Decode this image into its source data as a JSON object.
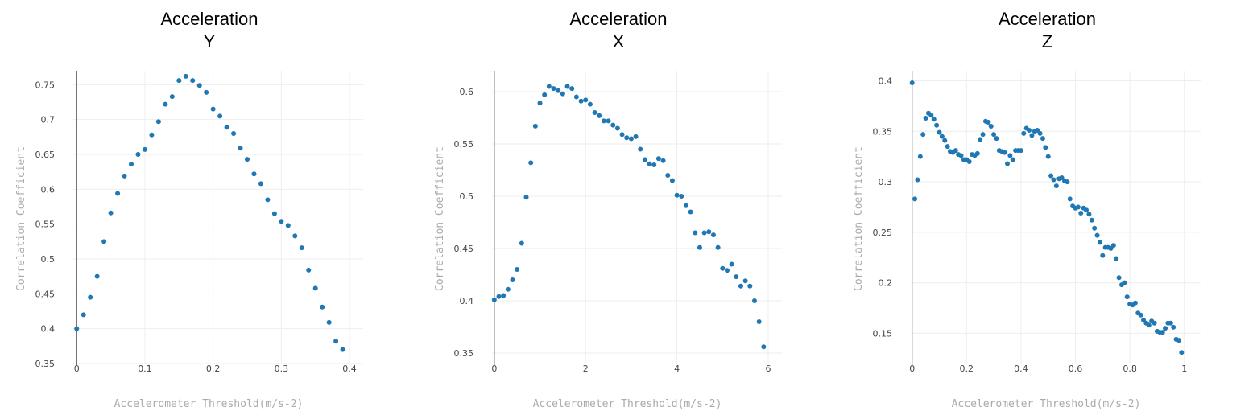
{
  "colors": {
    "marker": "#1f77b4",
    "grid": "#eeeeee",
    "axis_title": "#aaaaaa"
  },
  "chart_data": [
    {
      "type": "scatter",
      "title_line1": "Acceleration",
      "title_line2": "Y",
      "xlabel": "Accelerometer Threshold(m/s-2)",
      "ylabel": "Correlation Coefficient",
      "xlim": [
        -0.005,
        0.42
      ],
      "ylim": [
        0.35,
        0.77
      ],
      "xticks": [
        0,
        0.1,
        0.2,
        0.3,
        0.4
      ],
      "xtick_labels": [
        "0",
        "0.1",
        "0.2",
        "0.3",
        "0.4"
      ],
      "yticks": [
        0.35,
        0.4,
        0.45,
        0.5,
        0.55,
        0.6,
        0.65,
        0.7,
        0.75
      ],
      "ytick_labels": [
        "0.35",
        "0.4",
        "0.45",
        "0.5",
        "0.55",
        "0.6",
        "0.65",
        "0.7",
        "0.75"
      ],
      "grid": true,
      "x": [
        0,
        0.01,
        0.02,
        0.03,
        0.04,
        0.05,
        0.06,
        0.07,
        0.08,
        0.09,
        0.1,
        0.11,
        0.12,
        0.13,
        0.14,
        0.15,
        0.16,
        0.17,
        0.18,
        0.19,
        0.2,
        0.21,
        0.22,
        0.23,
        0.24,
        0.25,
        0.26,
        0.27,
        0.28,
        0.29,
        0.3,
        0.31,
        0.32,
        0.33,
        0.34,
        0.35,
        0.36,
        0.37,
        0.38,
        0.39
      ],
      "y": [
        0.4,
        0.42,
        0.445,
        0.475,
        0.525,
        0.566,
        0.594,
        0.619,
        0.636,
        0.65,
        0.657,
        0.678,
        0.697,
        0.722,
        0.733,
        0.756,
        0.762,
        0.756,
        0.749,
        0.739,
        0.715,
        0.705,
        0.689,
        0.68,
        0.659,
        0.643,
        0.622,
        0.608,
        0.585,
        0.565,
        0.554,
        0.548,
        0.533,
        0.516,
        0.484,
        0.458,
        0.431,
        0.409,
        0.382,
        0.37
      ]
    },
    {
      "type": "scatter",
      "title_line1": "Acceleration",
      "title_line2": "X",
      "xlabel": "Accelerometer Threshold(m/s-2)",
      "ylabel": "Correlation Coefficient",
      "xlim": [
        -0.05,
        6.3
      ],
      "ylim": [
        0.34,
        0.62
      ],
      "xticks": [
        0,
        2,
        4,
        6
      ],
      "xtick_labels": [
        "0",
        "2",
        "4",
        "6"
      ],
      "yticks": [
        0.35,
        0.4,
        0.45,
        0.5,
        0.55,
        0.6
      ],
      "ytick_labels": [
        "0.35",
        "0.4",
        "0.45",
        "0.5",
        "0.55",
        "0.6"
      ],
      "grid": true,
      "x": [
        0,
        0.1,
        0.2,
        0.3,
        0.4,
        0.5,
        0.6,
        0.7,
        0.8,
        0.9,
        1.0,
        1.1,
        1.2,
        1.3,
        1.4,
        1.5,
        1.6,
        1.7,
        1.8,
        1.9,
        2.0,
        2.1,
        2.2,
        2.3,
        2.4,
        2.5,
        2.6,
        2.7,
        2.8,
        2.9,
        3.0,
        3.1,
        3.2,
        3.3,
        3.4,
        3.5,
        3.6,
        3.7,
        3.8,
        3.9,
        4.0,
        4.1,
        4.2,
        4.3,
        4.4,
        4.5,
        4.6,
        4.7,
        4.8,
        4.9,
        5.0,
        5.1,
        5.2,
        5.3,
        5.4,
        5.5,
        5.6,
        5.7,
        5.8,
        5.9
      ],
      "y": [
        0.401,
        0.404,
        0.405,
        0.411,
        0.42,
        0.43,
        0.455,
        0.499,
        0.532,
        0.567,
        0.589,
        0.597,
        0.605,
        0.603,
        0.601,
        0.598,
        0.605,
        0.603,
        0.595,
        0.591,
        0.592,
        0.588,
        0.58,
        0.577,
        0.572,
        0.572,
        0.568,
        0.565,
        0.559,
        0.556,
        0.555,
        0.557,
        0.545,
        0.535,
        0.531,
        0.53,
        0.536,
        0.534,
        0.52,
        0.515,
        0.501,
        0.5,
        0.491,
        0.485,
        0.465,
        0.451,
        0.465,
        0.466,
        0.463,
        0.451,
        0.431,
        0.429,
        0.435,
        0.423,
        0.414,
        0.419,
        0.414,
        0.4,
        0.38,
        0.356
      ]
    },
    {
      "type": "scatter",
      "title_line1": "Acceleration",
      "title_line2": "Z",
      "xlabel": "Accelerometer Threshold(m/s-2)",
      "ylabel": "Correlation Coefficient",
      "xlim": [
        -0.005,
        1.06
      ],
      "ylim": [
        0.12,
        0.41
      ],
      "xticks": [
        0,
        0.2,
        0.4,
        0.6,
        0.8,
        1
      ],
      "xtick_labels": [
        "0",
        "0.2",
        "0.4",
        "0.6",
        "0.8",
        "1"
      ],
      "yticks": [
        0.15,
        0.2,
        0.25,
        0.3,
        0.35,
        0.4
      ],
      "ytick_labels": [
        "0.15",
        "0.2",
        "0.25",
        "0.3",
        "0.35",
        "0.4"
      ],
      "grid": true,
      "x": [
        0.0,
        0.01,
        0.02,
        0.03,
        0.04,
        0.05,
        0.06,
        0.07,
        0.08,
        0.09,
        0.1,
        0.11,
        0.12,
        0.13,
        0.14,
        0.15,
        0.16,
        0.17,
        0.18,
        0.19,
        0.2,
        0.21,
        0.22,
        0.23,
        0.24,
        0.25,
        0.26,
        0.27,
        0.28,
        0.29,
        0.3,
        0.31,
        0.32,
        0.33,
        0.34,
        0.35,
        0.36,
        0.37,
        0.38,
        0.39,
        0.4,
        0.41,
        0.42,
        0.43,
        0.44,
        0.45,
        0.46,
        0.47,
        0.48,
        0.49,
        0.5,
        0.51,
        0.52,
        0.53,
        0.54,
        0.55,
        0.56,
        0.57,
        0.58,
        0.59,
        0.6,
        0.61,
        0.62,
        0.63,
        0.64,
        0.65,
        0.66,
        0.67,
        0.68,
        0.69,
        0.7,
        0.71,
        0.72,
        0.73,
        0.74,
        0.75,
        0.76,
        0.77,
        0.78,
        0.79,
        0.8,
        0.81,
        0.82,
        0.83,
        0.84,
        0.85,
        0.86,
        0.87,
        0.88,
        0.89,
        0.9,
        0.91,
        0.92,
        0.93,
        0.94,
        0.95,
        0.96,
        0.97,
        0.98,
        0.99
      ],
      "y": [
        0.398,
        0.283,
        0.302,
        0.325,
        0.347,
        0.363,
        0.368,
        0.366,
        0.362,
        0.356,
        0.349,
        0.345,
        0.341,
        0.335,
        0.33,
        0.329,
        0.331,
        0.327,
        0.326,
        0.322,
        0.322,
        0.32,
        0.327,
        0.326,
        0.328,
        0.342,
        0.347,
        0.36,
        0.359,
        0.355,
        0.347,
        0.343,
        0.331,
        0.33,
        0.329,
        0.318,
        0.326,
        0.322,
        0.331,
        0.331,
        0.331,
        0.348,
        0.353,
        0.351,
        0.346,
        0.35,
        0.351,
        0.348,
        0.343,
        0.334,
        0.325,
        0.306,
        0.302,
        0.296,
        0.303,
        0.304,
        0.301,
        0.3,
        0.283,
        0.276,
        0.274,
        0.275,
        0.269,
        0.274,
        0.272,
        0.268,
        0.262,
        0.254,
        0.247,
        0.24,
        0.227,
        0.235,
        0.235,
        0.234,
        0.237,
        0.224,
        0.205,
        0.198,
        0.2,
        0.186,
        0.179,
        0.178,
        0.18,
        0.17,
        0.168,
        0.163,
        0.16,
        0.158,
        0.162,
        0.16,
        0.152,
        0.151,
        0.151,
        0.155,
        0.16,
        0.16,
        0.156,
        0.144,
        0.143,
        0.131
      ]
    }
  ]
}
